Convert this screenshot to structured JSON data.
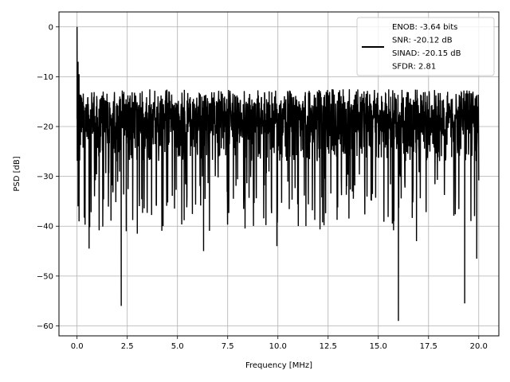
{
  "chart_data": {
    "type": "line",
    "title": "",
    "xlabel": "Frequency [MHz]",
    "ylabel": "PSD [dB]",
    "xlim": [
      -0.9,
      21.0
    ],
    "ylim": [
      -62.0,
      3.0
    ],
    "x_ticks": [
      0.0,
      2.5,
      5.0,
      7.5,
      10.0,
      12.5,
      15.0,
      17.5,
      20.0
    ],
    "x_tick_labels": [
      "0.0",
      "2.5",
      "5.0",
      "7.5",
      "10.0",
      "12.5",
      "15.0",
      "17.5",
      "20.0"
    ],
    "y_ticks": [
      0,
      -10,
      -20,
      -30,
      -40,
      -50,
      -60
    ],
    "y_tick_labels": [
      "0",
      "−10",
      "−20",
      "−30",
      "−40",
      "−50",
      "−60"
    ],
    "grid": true,
    "legend_position": "top-right",
    "legend_entries": [
      "ENOB: -3.64 bits",
      "SNR: -20.12 dB",
      "SINAD: -20.15 dB",
      "SFDR: 2.81"
    ],
    "series": [
      {
        "color": "#000000",
        "x_range": [
          0.0,
          20.0
        ],
        "approx_points": 2000,
        "peaks": [
          {
            "x": 0.0,
            "y": 0.0
          },
          {
            "x": 0.05,
            "y": -7.0
          },
          {
            "x": 0.1,
            "y": -9.5
          }
        ],
        "typical_upper_envelope_db": -12.5,
        "typical_mean_db": -21.0,
        "notable_dips": [
          {
            "x": 0.05,
            "y": -36.0
          },
          {
            "x": 0.6,
            "y": -44.5
          },
          {
            "x": 2.2,
            "y": -56.0
          },
          {
            "x": 2.45,
            "y": -41.0
          },
          {
            "x": 3.0,
            "y": -41.5
          },
          {
            "x": 6.3,
            "y": -45.0
          },
          {
            "x": 9.95,
            "y": -44.0
          },
          {
            "x": 16.0,
            "y": -59.0
          },
          {
            "x": 16.9,
            "y": -43.0
          },
          {
            "x": 19.3,
            "y": -55.5
          },
          {
            "x": 19.9,
            "y": -46.5
          }
        ]
      }
    ]
  }
}
